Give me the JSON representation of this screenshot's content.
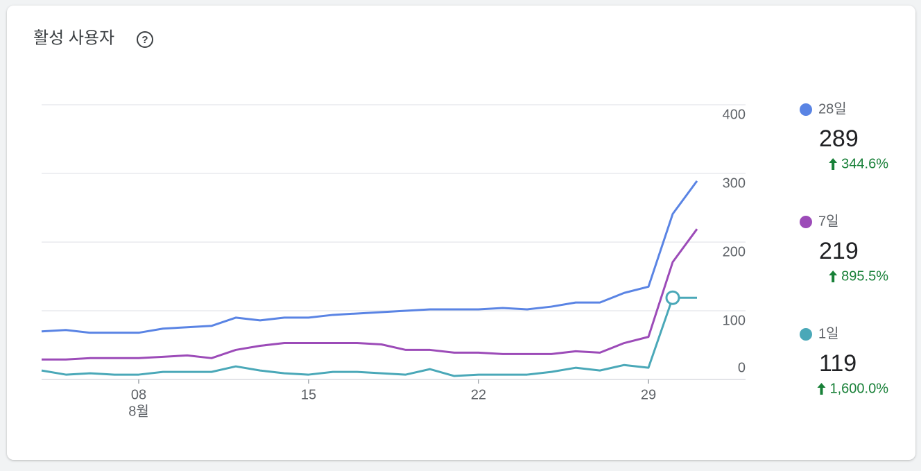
{
  "chart_data": {
    "type": "line",
    "title": "활성 사용자",
    "categories": [
      null,
      null,
      null,
      null,
      "08",
      null,
      null,
      null,
      null,
      null,
      null,
      "15",
      null,
      null,
      null,
      null,
      null,
      null,
      "22",
      null,
      null,
      null,
      null,
      null,
      null,
      "29",
      null,
      null
    ],
    "month_label": "8월",
    "series": [
      {
        "name": "28일",
        "color": "#5a84e4",
        "total": 289,
        "change": "344.6%",
        "values": [
          70,
          72,
          68,
          68,
          68,
          74,
          76,
          78,
          90,
          86,
          90,
          90,
          94,
          96,
          98,
          100,
          102,
          102,
          102,
          104,
          102,
          106,
          112,
          112,
          126,
          135,
          241,
          289
        ]
      },
      {
        "name": "7일",
        "color": "#9c4bb8",
        "total": 219,
        "change": "895.5%",
        "values": [
          29,
          29,
          31,
          31,
          31,
          33,
          35,
          31,
          43,
          49,
          53,
          53,
          53,
          53,
          51,
          43,
          43,
          39,
          39,
          37,
          37,
          37,
          41,
          39,
          53,
          62,
          171,
          219
        ]
      },
      {
        "name": "1일",
        "color": "#4aa8b8",
        "total": 119,
        "change": "1,600.0%",
        "values": [
          13,
          7,
          9,
          7,
          7,
          11,
          11,
          11,
          19,
          13,
          9,
          7,
          11,
          11,
          9,
          7,
          15,
          5,
          7,
          7,
          7,
          11,
          17,
          13,
          21,
          17,
          119,
          119
        ]
      }
    ],
    "ylim": [
      0,
      400
    ],
    "yticks": [
      0,
      100,
      200,
      300,
      400
    ],
    "grid": true
  }
}
